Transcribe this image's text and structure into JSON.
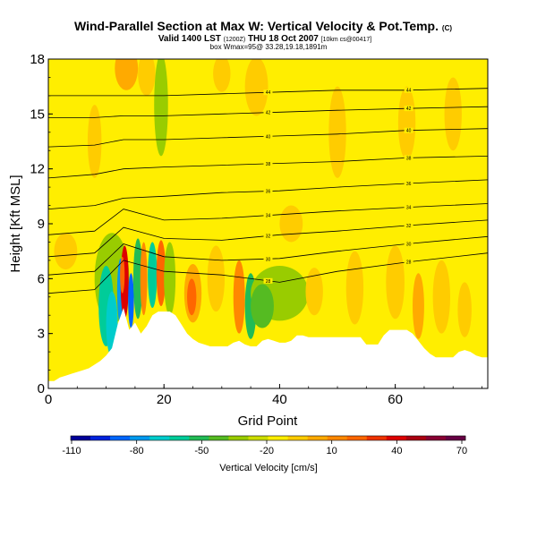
{
  "chart_data": {
    "type": "heatmap",
    "title": "Wind-Parallel Section at Max W: Vertical Velocity & Pot.Temp.",
    "title_suffix": "(C)",
    "subtitle_main": "Valid 1400 LST",
    "subtitle_utc": "(1200Z)",
    "subtitle_date": "THU 18 Oct 2007",
    "subtitle_cs": "[10km cs@00417]",
    "subtitle2": "box Wmax=95@ 33.28,19.18,1891m",
    "xlabel": "Grid Point",
    "ylabel": "Height [Kft MSL]",
    "xlim": [
      0,
      76
    ],
    "ylim": [
      0,
      18
    ],
    "xticks": [
      "0",
      "20",
      "40",
      "60"
    ],
    "xtick_values": [
      0,
      20,
      40,
      60
    ],
    "yticks": [
      "0",
      "3",
      "6",
      "9",
      "12",
      "15",
      "18"
    ],
    "ytick_values": [
      0,
      3,
      6,
      9,
      12,
      15,
      18
    ],
    "colorbar": {
      "label": "Vertical Velocity [cm/s]",
      "tick_labels": [
        "-110",
        "-80",
        "-50",
        "-20",
        "10",
        "40",
        "70"
      ],
      "colors": [
        "#000099",
        "#0022dd",
        "#0066ff",
        "#0099ee",
        "#00cccc",
        "#00cc99",
        "#22bb55",
        "#55bb22",
        "#99cc00",
        "#ccdd00",
        "#ffee00",
        "#ffcc00",
        "#ffaa00",
        "#ff8800",
        "#ff6600",
        "#ee3300",
        "#dd0000",
        "#aa0011",
        "#880033",
        "#660044"
      ]
    },
    "terrain": {
      "x": [
        0,
        1,
        2,
        3,
        4,
        5,
        6,
        7,
        8,
        9,
        10,
        11,
        12,
        13,
        14,
        15,
        16,
        17,
        18,
        19,
        20,
        21,
        22,
        23,
        24,
        25,
        26,
        27,
        28,
        29,
        30,
        31,
        32,
        33,
        34,
        35,
        36,
        37,
        38,
        39,
        40,
        41,
        42,
        43,
        44,
        45,
        46,
        47,
        48,
        49,
        50,
        51,
        52,
        53,
        54,
        55,
        56,
        57,
        58,
        59,
        60,
        61,
        62,
        63,
        64,
        65,
        66,
        67,
        68,
        69,
        70,
        71,
        72,
        73,
        74,
        75,
        76
      ],
      "height_kft": [
        0.4,
        0.4,
        0.6,
        0.7,
        0.8,
        0.9,
        1.0,
        1.1,
        1.3,
        1.5,
        1.8,
        2.2,
        3.5,
        4.4,
        3.2,
        3.6,
        3.0,
        3.4,
        4.0,
        4.2,
        4.2,
        4.2,
        4.0,
        3.5,
        3.0,
        2.7,
        2.5,
        2.4,
        2.3,
        2.3,
        2.3,
        2.3,
        2.5,
        2.6,
        2.4,
        2.3,
        2.3,
        2.6,
        2.7,
        2.6,
        2.5,
        2.5,
        2.6,
        2.9,
        2.9,
        2.8,
        2.8,
        2.8,
        2.8,
        2.8,
        2.8,
        2.8,
        2.8,
        2.8,
        2.8,
        2.4,
        2.4,
        2.4,
        2.9,
        3.2,
        3.2,
        3.2,
        3.2,
        3.0,
        2.6,
        2.2,
        1.9,
        1.7,
        1.7,
        1.7,
        1.7,
        2.0,
        2.1,
        2.0,
        1.8,
        1.7,
        1.7
      ]
    },
    "isentropes": [
      {
        "label": "44",
        "y_kft": [
          16.0,
          16.0,
          16.0,
          16.0,
          16.1,
          16.2,
          16.3,
          16.3,
          16.4
        ]
      },
      {
        "label": "42",
        "y_kft": [
          14.8,
          14.8,
          14.9,
          14.9,
          15.0,
          15.1,
          15.2,
          15.3,
          15.4
        ]
      },
      {
        "label": "40",
        "y_kft": [
          13.2,
          13.3,
          13.6,
          13.6,
          13.7,
          13.8,
          13.9,
          14.1,
          14.2
        ]
      },
      {
        "label": "38",
        "y_kft": [
          11.5,
          11.7,
          12.0,
          12.1,
          12.2,
          12.3,
          12.4,
          12.6,
          12.7
        ]
      },
      {
        "label": "36",
        "y_kft": [
          9.8,
          10.0,
          10.4,
          10.5,
          10.7,
          10.8,
          11.0,
          11.2,
          11.4
        ]
      },
      {
        "label": "34",
        "y_kft": [
          8.4,
          8.6,
          9.8,
          9.2,
          9.3,
          9.5,
          9.7,
          9.9,
          10.1
        ]
      },
      {
        "label": "32",
        "y_kft": [
          7.2,
          7.4,
          8.8,
          8.2,
          8.1,
          8.4,
          8.6,
          8.9,
          9.2
        ]
      },
      {
        "label": "30",
        "y_kft": [
          6.2,
          6.4,
          7.9,
          7.2,
          7.0,
          7.1,
          7.5,
          7.9,
          8.3
        ]
      },
      {
        "label": "28",
        "y_kft": [
          5.2,
          5.4,
          7.0,
          6.4,
          6.2,
          5.8,
          6.4,
          6.9,
          7.4
        ]
      }
    ],
    "isentrope_x": [
      0,
      8,
      13,
      20,
      30,
      40,
      50,
      62,
      76
    ]
  }
}
